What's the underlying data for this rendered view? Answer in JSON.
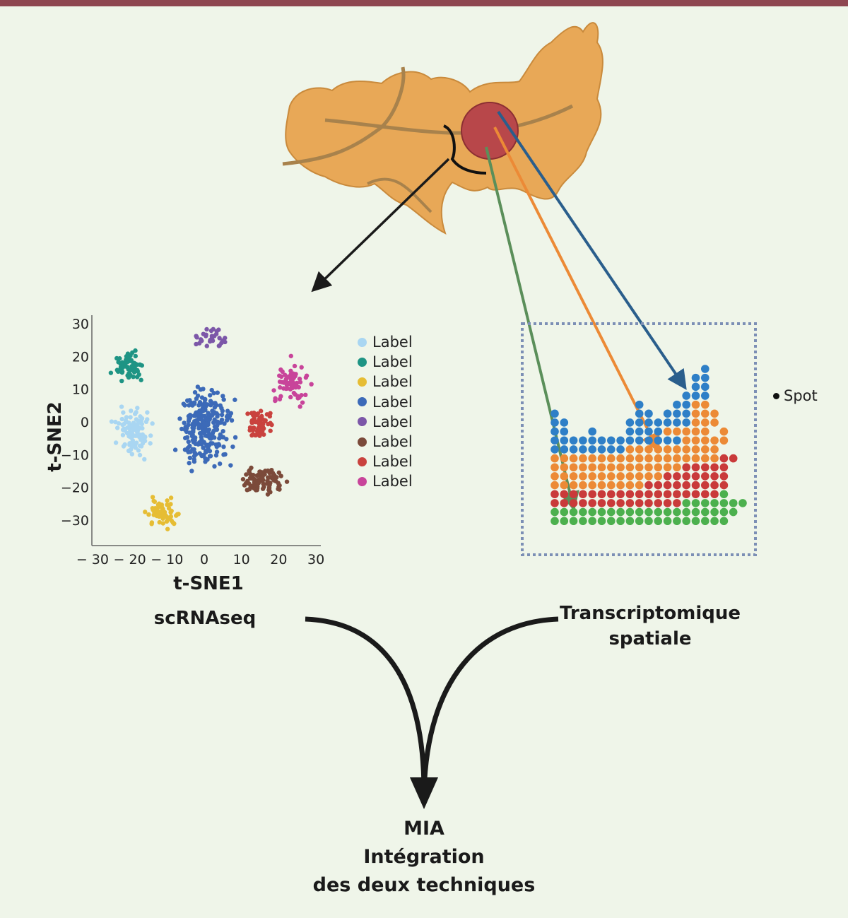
{
  "colors": {
    "top_bar": "#8e4650",
    "tissue": "#e8a857",
    "tumor": "#b8474a",
    "blue": "#2e7fc7",
    "orange": "#ec8a36",
    "red": "#c93a3a",
    "green": "#4cb04e",
    "dash_box": "#7c8fb5"
  },
  "labels": {
    "scrnaseq": "scRNAseq",
    "spatial_line1": "Transcriptomique",
    "spatial_line2": "spatiale",
    "mia": "MIA",
    "integration": "Intégration",
    "both": "des deux techniques",
    "spot": "Spot"
  },
  "chart_data": {
    "type": "scatter",
    "xlabel": "t-SNE1",
    "ylabel": "t-SNE2",
    "xlim": [
      -30,
      30
    ],
    "ylim": [
      -35,
      30
    ],
    "xticks": [
      "− 30",
      "− 20",
      "− 10",
      "0",
      "10",
      "20",
      "30"
    ],
    "xtick_values": [
      -30,
      -20,
      -10,
      0,
      10,
      20,
      30
    ],
    "yticks": [
      "30",
      "20",
      "10",
      "0",
      "−10",
      "−20",
      "−30"
    ],
    "ytick_values": [
      30,
      20,
      10,
      0,
      -10,
      -20,
      -30
    ],
    "legend": [
      "Label",
      "Label",
      "Label",
      "Label",
      "Label",
      "Label",
      "Label",
      "Label"
    ],
    "legend_placement": "right",
    "clusters": [
      {
        "color": "#a9d6f2",
        "center": [
          -19,
          -3
        ],
        "spread": [
          4,
          6
        ],
        "n": 100
      },
      {
        "color": "#1e9484",
        "center": [
          -20,
          17
        ],
        "spread": [
          3.5,
          3.5
        ],
        "n": 60
      },
      {
        "color": "#e6bd34",
        "center": [
          -11,
          -28
        ],
        "spread": [
          3.5,
          3.5
        ],
        "n": 60
      },
      {
        "color": "#3c6ab8",
        "center": [
          0,
          -2
        ],
        "spread": [
          6,
          10
        ],
        "n": 250
      },
      {
        "color": "#7c57a8",
        "center": [
          2,
          26
        ],
        "spread": [
          3,
          3
        ],
        "n": 30
      },
      {
        "color": "#7b4a3a",
        "center": [
          16,
          -18
        ],
        "spread": [
          5,
          4
        ],
        "n": 90
      },
      {
        "color": "#c9423e",
        "center": [
          15,
          -1
        ],
        "spread": [
          3,
          4
        ],
        "n": 60
      },
      {
        "color": "#c8449a",
        "center": [
          23,
          12
        ],
        "spread": [
          4,
          5
        ],
        "n": 80
      }
    ]
  },
  "spatial_grid": {
    "legend_colors": {
      "b": "#2e7fc7",
      "o": "#ec8a36",
      "r": "#c93a3a",
      "g": "#4cb04e"
    },
    "rows": [
      "................b....",
      "...............bb....",
      "...............bb....",
      "..............bbb....",
      ".........b...bboo....",
      "b........bb.bbbooo...",
      "bb......bbbbbbbooo...",
      "bb..b...bbbbooooo o..",
      "bbbbbbbbbbbbbbooooo..",
      "bbbbbbbboooooooooo...",
      "oooooooooooooooooorr.",
      "oooooooooooooorrrrr..",
      "oooooooooooorrrrrrr..",
      "oooooooooorrrrrrrrr..",
      "rrrrrrrrrrrrrrrrrrg..",
      "rrrrrrrrrrrrrrggggggg",
      "gggggggggggggggggggg.",
      "ggggggggggggggggggg.."
    ]
  }
}
